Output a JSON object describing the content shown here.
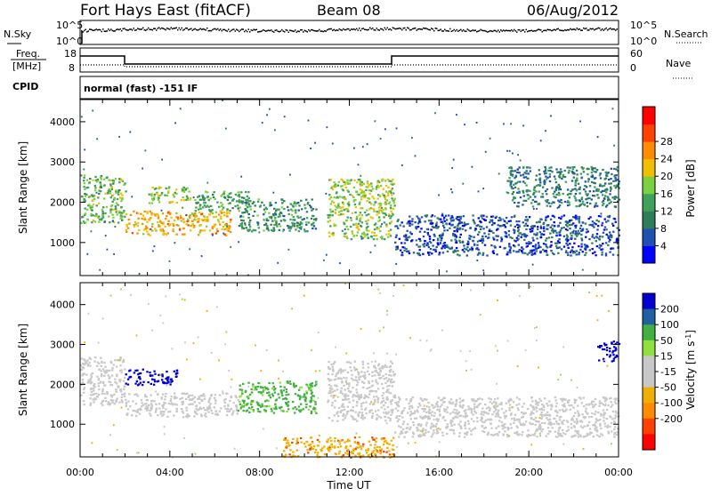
{
  "header": {
    "station": "Fort Hays East (fitACF)",
    "beam": "Beam 08",
    "date": "06/Aug/2012"
  },
  "nsky_panel": {
    "left_label": "N.Sky",
    "left_ticks": [
      "10^5",
      "10^0"
    ],
    "right_label": "N.Search",
    "right_ticks": [
      "10^5",
      "10^0"
    ]
  },
  "freq_panel": {
    "left_label_line1": "Freq.",
    "left_label_line2": "[MHz]",
    "left_ticks": [
      "18",
      "8"
    ],
    "right_label": "Nave",
    "right_ticks": [
      "60",
      "0"
    ]
  },
  "cpid": {
    "label": "CPID",
    "text": "normal (fast) -151 IF"
  },
  "colors": {
    "power_bar": [
      "#0000ff",
      "#2050b0",
      "#2e7d5a",
      "#3fa05a",
      "#7ad040",
      "#f0c000",
      "#ff8c00",
      "#ff4000",
      "#ff0000"
    ],
    "velocity_bar": [
      "#ff0000",
      "#ff4000",
      "#ff8c00",
      "#f0b000",
      "#c8c8c8",
      "#c8c8c8",
      "#90e040",
      "#40b040",
      "#2060a0",
      "#0000d0"
    ]
  },
  "chart_data": [
    {
      "type": "heatmap",
      "panel": "power",
      "xlabel": "Time UT",
      "ylabel": "Slant Range [km]",
      "x_ticks": [
        "00:00",
        "04:00",
        "08:00",
        "12:00",
        "16:00",
        "20:00",
        "00:00"
      ],
      "y_ticks": [
        1000,
        2000,
        3000,
        4000
      ],
      "xlim": [
        0,
        24
      ],
      "ylim": [
        180,
        4550
      ],
      "colorbar_label": "Power [dB]",
      "colorbar_ticks": [
        4,
        8,
        12,
        16,
        20,
        24,
        28
      ],
      "features": [
        {
          "t": [
            0,
            2
          ],
          "r": [
            1500,
            2700
          ],
          "level": 16
        },
        {
          "t": [
            2,
            6.7
          ],
          "r": [
            1200,
            1800
          ],
          "level": 24
        },
        {
          "t": [
            3,
            5
          ],
          "r": [
            2000,
            2400
          ],
          "level": 18
        },
        {
          "t": [
            5,
            7.5
          ],
          "r": [
            1800,
            2300
          ],
          "level": 14
        },
        {
          "t": [
            7,
            10.5
          ],
          "r": [
            1300,
            2100
          ],
          "level": 12
        },
        {
          "t": [
            11,
            14
          ],
          "r": [
            1100,
            2600
          ],
          "level": 18
        },
        {
          "t": [
            14,
            24
          ],
          "r": [
            700,
            1700
          ],
          "level": 6
        },
        {
          "t": [
            19,
            24
          ],
          "r": [
            1900,
            2900
          ],
          "level": 10
        }
      ]
    },
    {
      "type": "heatmap",
      "panel": "velocity",
      "xlabel": "Time UT",
      "ylabel": "Slant Range [km]",
      "x_ticks": [
        "00:00",
        "04:00",
        "08:00",
        "12:00",
        "16:00",
        "20:00",
        "00:00"
      ],
      "y_ticks": [
        1000,
        2000,
        3000,
        4000
      ],
      "xlim": [
        0,
        24
      ],
      "ylim": [
        180,
        4550
      ],
      "colorbar_label": "Velocity [m s^-1]",
      "colorbar_ticks": [
        200,
        100,
        50,
        15,
        -15,
        -50,
        -100,
        -200
      ],
      "features": [
        {
          "t": [
            0,
            2
          ],
          "r": [
            1500,
            2700
          ],
          "level": 0
        },
        {
          "t": [
            2,
            4.3
          ],
          "r": [
            2000,
            2400
          ],
          "level": 200
        },
        {
          "t": [
            2,
            7
          ],
          "r": [
            1200,
            1800
          ],
          "level": 0
        },
        {
          "t": [
            7,
            10.5
          ],
          "r": [
            1300,
            2100
          ],
          "level": 60
        },
        {
          "t": [
            11,
            14
          ],
          "r": [
            1100,
            2600
          ],
          "level": 0
        },
        {
          "t": [
            14,
            24
          ],
          "r": [
            700,
            1700
          ],
          "level": 0
        },
        {
          "t": [
            23,
            24
          ],
          "r": [
            2600,
            3100
          ],
          "level": 200
        },
        {
          "t": [
            9,
            14
          ],
          "r": [
            180,
            700
          ],
          "level": -40
        }
      ]
    }
  ]
}
